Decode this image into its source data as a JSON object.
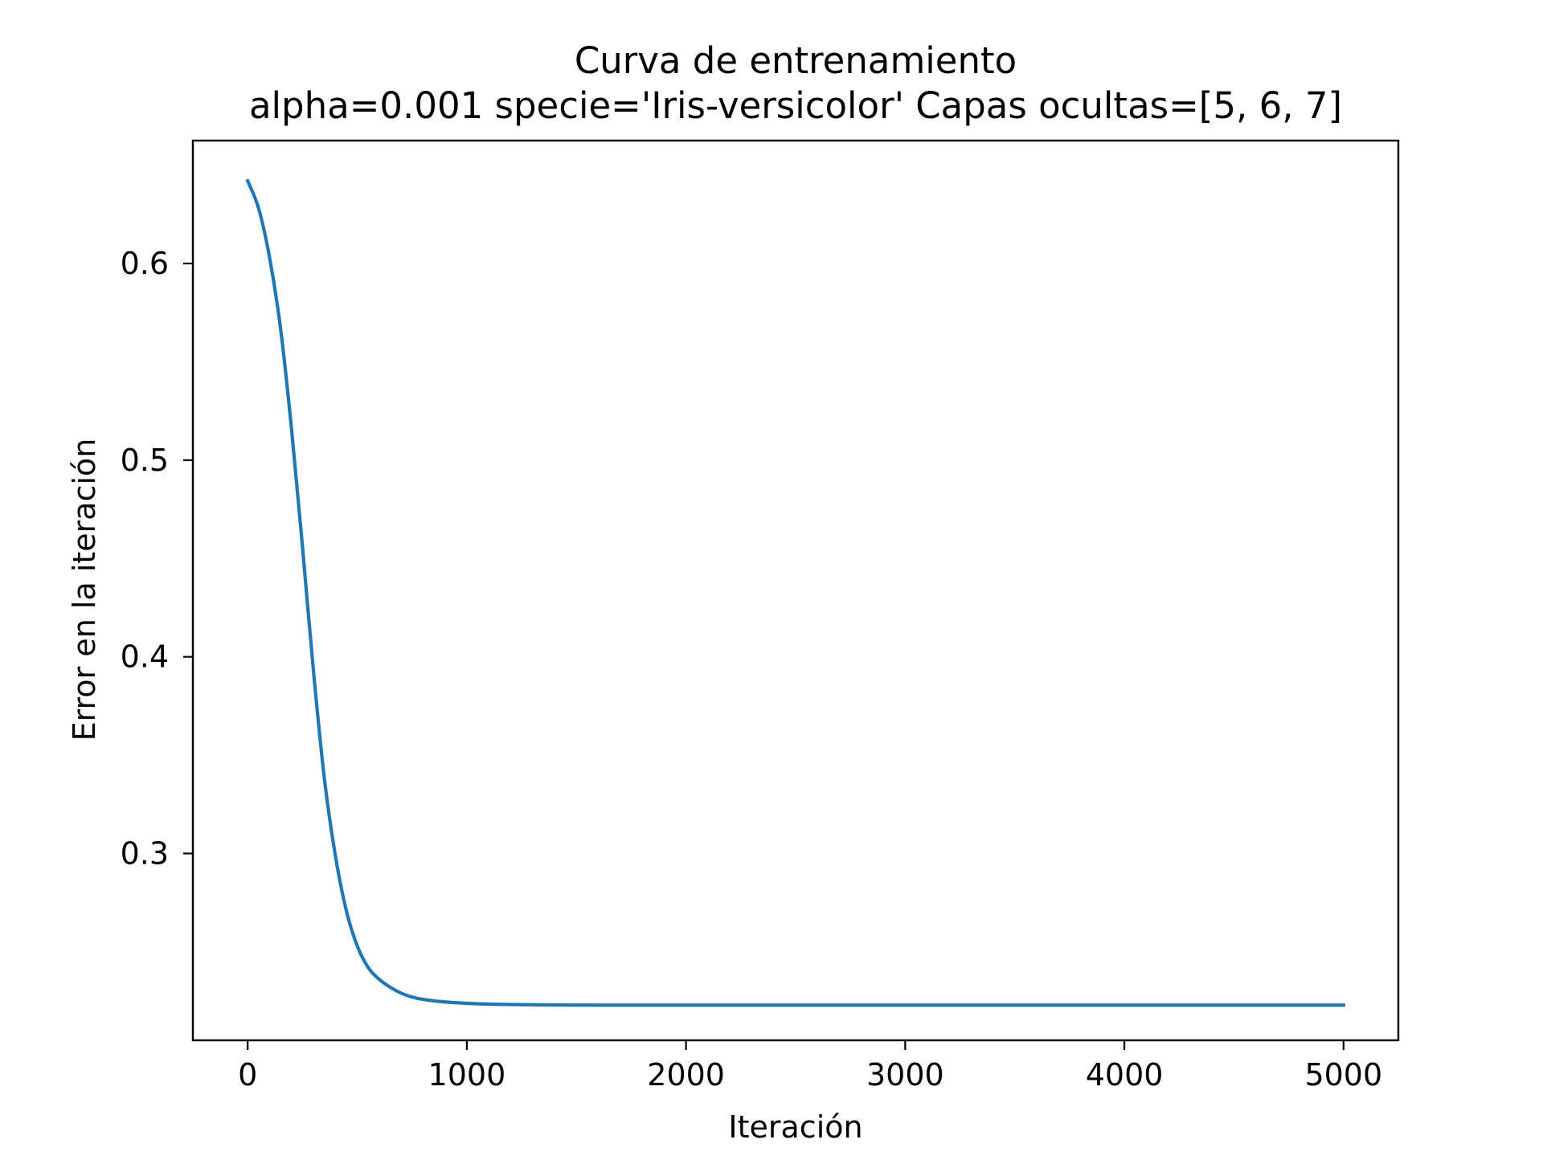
{
  "chart_data": {
    "type": "line",
    "title": "Curva de entrenamiento",
    "subtitle": "alpha=0.001 specie='Iris-versicolor' Capas ocultas=[5, 6, 7]",
    "xlabel": "Iteración",
    "ylabel": "Error en la iteración",
    "xlim": [
      -250,
      5250
    ],
    "ylim": [
      0.205,
      0.6625
    ],
    "xticks": [
      0,
      1000,
      2000,
      3000,
      4000,
      5000
    ],
    "xtick_labels": [
      "0",
      "1000",
      "2000",
      "3000",
      "4000",
      "5000"
    ],
    "yticks": [
      0.3,
      0.4,
      0.5,
      0.6
    ],
    "ytick_labels": [
      "0.3",
      "0.4",
      "0.5",
      "0.6"
    ],
    "grid": false,
    "legend": false,
    "line_color": "#1f77b4",
    "series": [
      {
        "x": [
          0,
          50,
          100,
          150,
          200,
          250,
          300,
          350,
          400,
          450,
          500,
          550,
          600,
          650,
          700,
          750,
          800,
          900,
          1000,
          1100,
          1200,
          1400,
          1600,
          2000,
          3000,
          4000,
          5000
        ],
        "values": [
          0.642,
          0.628,
          0.603,
          0.567,
          0.516,
          0.456,
          0.393,
          0.338,
          0.299,
          0.271,
          0.253,
          0.242,
          0.236,
          0.232,
          0.229,
          0.227,
          0.2258,
          0.2245,
          0.2238,
          0.2234,
          0.2232,
          0.223,
          0.2229,
          0.2229,
          0.2229,
          0.2229,
          0.2229
        ]
      }
    ]
  }
}
